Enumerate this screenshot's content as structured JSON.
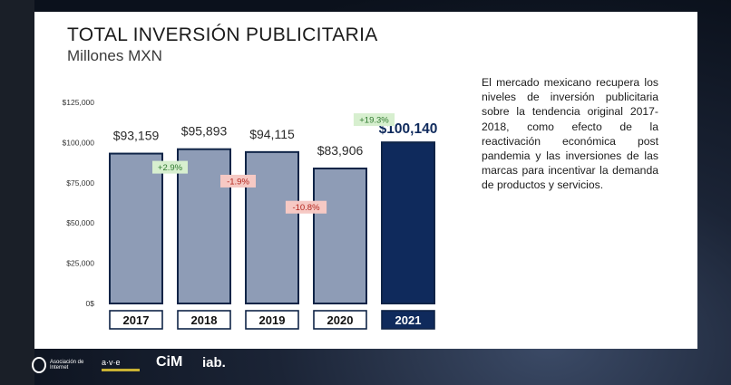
{
  "slide": {
    "title": "TOTAL INVERSIÓN PUBLICITARIA",
    "subtitle": "Millones MXN",
    "description": "El mercado mexicano recupera los niveles de inversión publicitaria sobre la tendencia original 2017-2018, como efecto de la reactivación económica post pandemia y las inversiones de las marcas para incentivar la demanda de productos y servicios."
  },
  "chart_data": {
    "type": "bar",
    "categories": [
      "2017",
      "2018",
      "2019",
      "2020",
      "2021"
    ],
    "values": [
      93159,
      95893,
      94115,
      83906,
      100140
    ],
    "value_labels": [
      "$93,159",
      "$95,893",
      "$94,115",
      "$83,906",
      "$100,140"
    ],
    "highlight_index": 4,
    "ylim": [
      0,
      125000
    ],
    "yticks": [
      0,
      25000,
      50000,
      75000,
      100000,
      125000
    ],
    "ytick_labels": [
      "0$",
      "$25,000",
      "$50,000",
      "$75,000",
      "$100,000",
      "$125,000"
    ],
    "growth": [
      {
        "between": [
          0,
          1
        ],
        "label": "+2.9%",
        "sign": "positive"
      },
      {
        "between": [
          1,
          2
        ],
        "label": "-1.9%",
        "sign": "negative"
      },
      {
        "between": [
          2,
          3
        ],
        "label": "-10.8%",
        "sign": "negative"
      },
      {
        "between": [
          3,
          4
        ],
        "label": "+19.3%",
        "sign": "positive"
      }
    ],
    "colors": {
      "bar": "#8e9cb6",
      "bar_border": "#0f2447",
      "highlight": "#0f2a5c",
      "positive_bg": "#d7efcf",
      "positive_text": "#2f7a2f",
      "negative_bg": "#f6c9c4",
      "negative_text": "#b3261e"
    }
  },
  "footer": {
    "logos": [
      {
        "name": "asociacion-de-internet-logo",
        "text": "Asociación de Internet"
      },
      {
        "name": "ave-logo",
        "text": "a·v·e"
      },
      {
        "name": "cim-logo",
        "text": "CiM"
      },
      {
        "name": "iab-logo",
        "text": "iab."
      }
    ]
  }
}
